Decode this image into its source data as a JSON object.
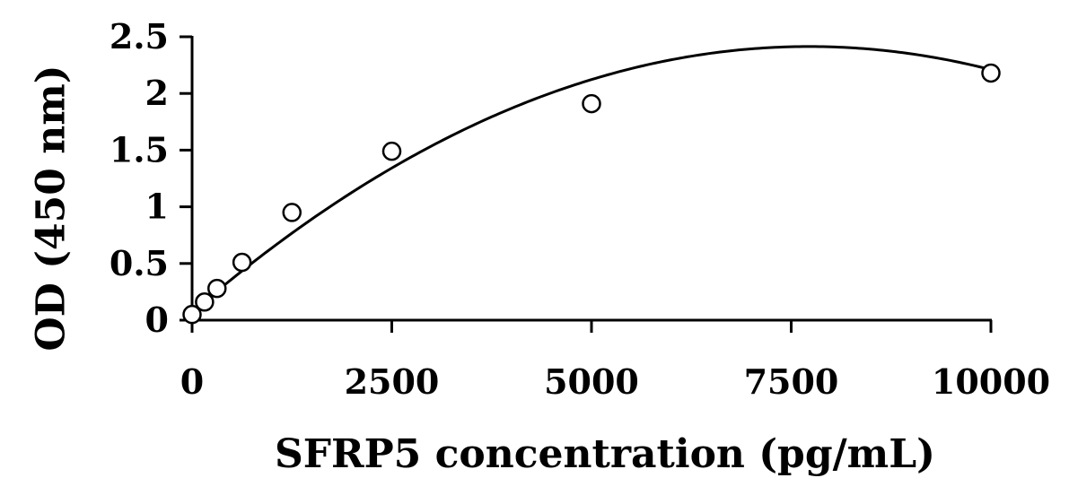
{
  "chart_data": {
    "type": "scatter",
    "title": "",
    "xlabel": "SFRP5 concentration (pg/mL)",
    "ylabel": "OD (450 nm)",
    "xlim": [
      0,
      10000
    ],
    "ylim": [
      0,
      2.5
    ],
    "x_ticks": [
      "0",
      "2500",
      "5000",
      "7500",
      "10000"
    ],
    "y_ticks": [
      "0",
      "0.5",
      "1",
      "1.5",
      "2",
      "2.5"
    ],
    "grid": false,
    "legend": "none",
    "series": [
      {
        "marker": "open-circle",
        "points": [
          {
            "x": 0,
            "y": 0.05
          },
          {
            "x": 156,
            "y": 0.16
          },
          {
            "x": 312,
            "y": 0.28
          },
          {
            "x": 625,
            "y": 0.51
          },
          {
            "x": 1250,
            "y": 0.95
          },
          {
            "x": 2500,
            "y": 1.49
          },
          {
            "x": 5000,
            "y": 1.91
          },
          {
            "x": 10000,
            "y": 2.18
          }
        ]
      }
    ],
    "fit": {
      "type": "polynomial-2",
      "coefficients": [
        0.07,
        0.000607,
        -3.93e-08
      ]
    },
    "colors": {
      "marker_stroke": "#000000",
      "marker_fill": "#ffffff",
      "axis": "#000000",
      "curve": "#000000"
    }
  }
}
